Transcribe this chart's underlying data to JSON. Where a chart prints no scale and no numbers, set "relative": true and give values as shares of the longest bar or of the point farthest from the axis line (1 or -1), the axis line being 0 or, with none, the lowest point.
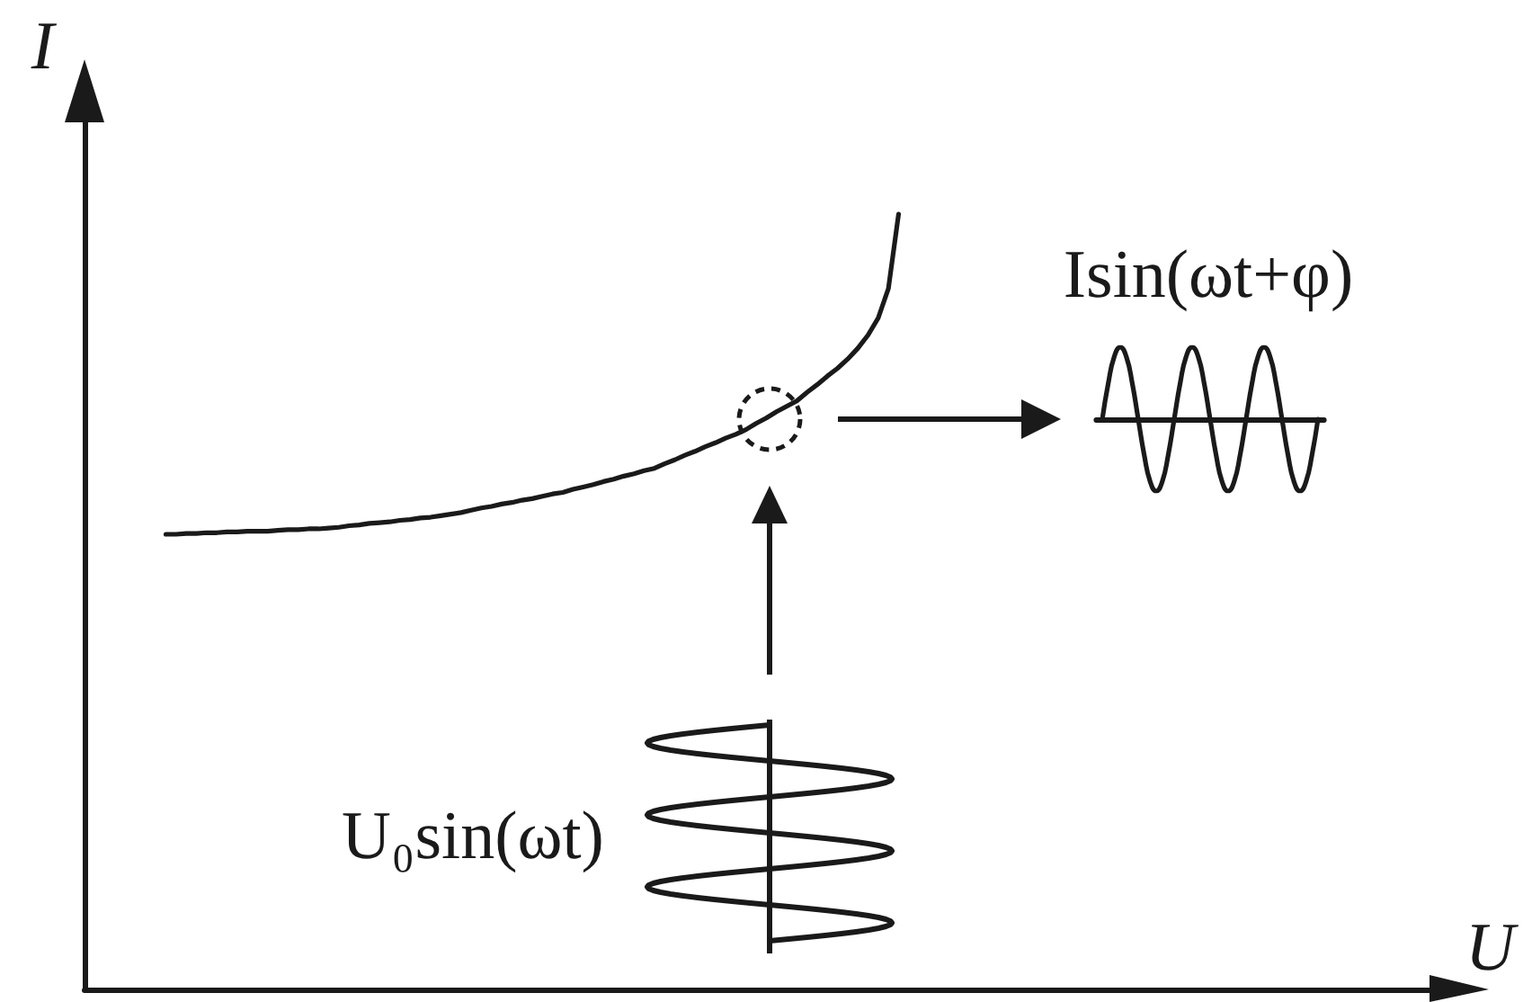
{
  "chart_data": [
    {
      "type": "line",
      "xlabel": "U",
      "ylabel": "I",
      "relative": true,
      "marker": "none",
      "line_style": "solid",
      "grid": false,
      "tick_labels": false,
      "categories": [
        null,
        null,
        null,
        null,
        null,
        null,
        null,
        null,
        null,
        null,
        null,
        null,
        null,
        null,
        null,
        null,
        null,
        null,
        null,
        null,
        null,
        null,
        null,
        null,
        null,
        null,
        null,
        null,
        null,
        null,
        null,
        null,
        null,
        null,
        null,
        null,
        null,
        null,
        null,
        null,
        null,
        null,
        null,
        null,
        null,
        null,
        null,
        null,
        null,
        null,
        null,
        null,
        null,
        null,
        null,
        null,
        null,
        null,
        null,
        null,
        null,
        null,
        null,
        null,
        null,
        null,
        null,
        null,
        null,
        null,
        null,
        null,
        null,
        null,
        null,
        null,
        null,
        null,
        null,
        null,
        null,
        null,
        null,
        null,
        null,
        null,
        null,
        null,
        null,
        null,
        null,
        null,
        null,
        null,
        null,
        null,
        null,
        null,
        null,
        null,
        null,
        null,
        null,
        null,
        null,
        null,
        null,
        null,
        null,
        null,
        null,
        null,
        null,
        null,
        null,
        null,
        null,
        null,
        null,
        null,
        null,
        null,
        null,
        null,
        null,
        null,
        null,
        null,
        null,
        null,
        null,
        null,
        null,
        null,
        null,
        null
      ],
      "series": [
        {
          "color": "#1a1a1a",
          "values": [
            null,
            null,
            null,
            null,
            null,
            null,
            null,
            null,
            0.587,
            0.587,
            0.588,
            0.588,
            0.589,
            0.589,
            0.59,
            0.59,
            0.591,
            0.591,
            0.591,
            0.592,
            0.593,
            0.593,
            0.594,
            0.594,
            0.595,
            0.596,
            0.598,
            0.599,
            0.601,
            0.602,
            0.603,
            0.605,
            0.606,
            0.608,
            0.609,
            0.611,
            0.613,
            0.615,
            0.618,
            0.621,
            0.623,
            0.626,
            0.628,
            0.631,
            0.633,
            0.636,
            0.639,
            0.641,
            0.645,
            0.648,
            0.651,
            0.655,
            0.658,
            0.662,
            0.665,
            0.669,
            0.672,
            0.678,
            0.683,
            0.689,
            0.694,
            0.7,
            0.705,
            0.711,
            0.716,
            0.722,
            0.73,
            0.737,
            0.745,
            0.752,
            0.759,
            0.77,
            0.78,
            0.791,
            0.801,
            0.813,
            0.827,
            0.844,
            0.866,
            0.904,
            1,
            null,
            null,
            null,
            null,
            null,
            null,
            null,
            null,
            null,
            null,
            null,
            null,
            null,
            null,
            null,
            null,
            null,
            null,
            null,
            null,
            null,
            null,
            null,
            null,
            null,
            null,
            null,
            null,
            null,
            null,
            null,
            null,
            null,
            null,
            null,
            null,
            null,
            null,
            null,
            null,
            null,
            null,
            null,
            null,
            null,
            null,
            null,
            null,
            null,
            null,
            null,
            null,
            null,
            null,
            null
          ]
        }
      ],
      "annotations": [
        "U₀sin(ωt)"
      ]
    },
    {
      "type": "line",
      "title": "Isin(ωt+φ)",
      "relative": true,
      "marker": "none",
      "line_style": "solid",
      "grid": false,
      "tick_labels": false,
      "categories": [
        null,
        null,
        null,
        null,
        null,
        null,
        null,
        null,
        null,
        null,
        null,
        null,
        null,
        null,
        null,
        null,
        null,
        null,
        null,
        null,
        null,
        null,
        null,
        null,
        null,
        null,
        null,
        null,
        null,
        null,
        null,
        null,
        null,
        null,
        null,
        null,
        null,
        null,
        null
      ],
      "series": [
        {
          "color": "#1a1a1a",
          "values": [
            null,
            0,
            0.5,
            0.87,
            1,
            0.87,
            0.5,
            0,
            -0.5,
            -0.87,
            -1,
            -0.87,
            -0.5,
            0,
            0.5,
            0.87,
            1,
            0.87,
            0.5,
            0,
            -0.5,
            -0.87,
            -1,
            -0.87,
            -0.5,
            0,
            0.5,
            0.87,
            1,
            0.87,
            0.5,
            0,
            -0.5,
            -0.87,
            -1,
            -0.87,
            -0.5,
            0,
            null
          ]
        }
      ]
    }
  ]
}
